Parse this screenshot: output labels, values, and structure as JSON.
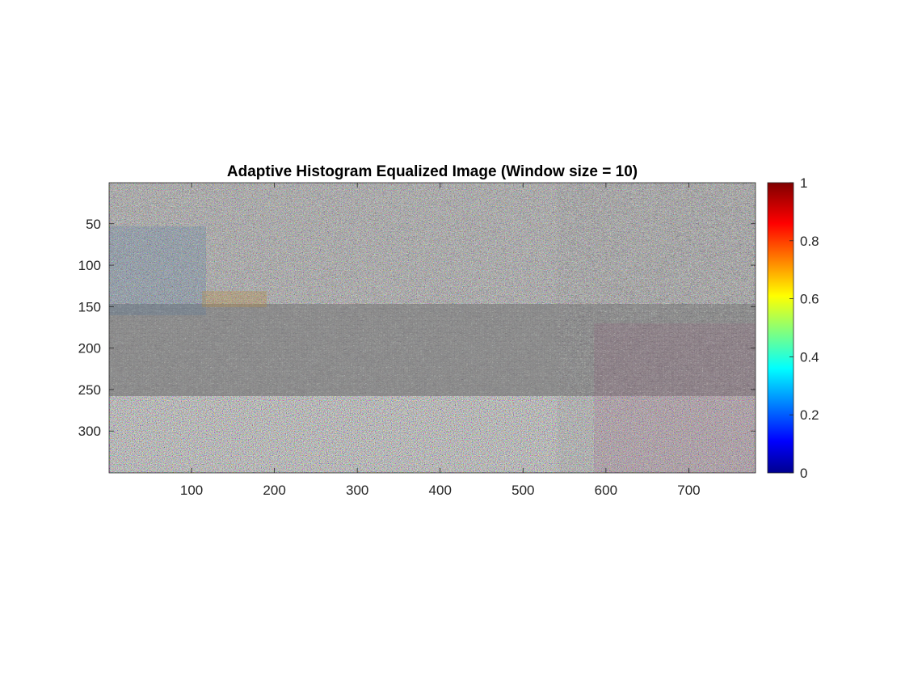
{
  "figure": {
    "title": "Adaptive Histogram Equalized Image (Window size = 10)",
    "image_width": 780,
    "image_height": 350,
    "xticks": [
      100,
      200,
      300,
      400,
      500,
      600,
      700
    ],
    "yticks": [
      50,
      100,
      150,
      200,
      250,
      300
    ],
    "yticks_shown": [
      "50",
      "100",
      "150",
      "200",
      "250",
      "300"
    ],
    "xtick_labels": [
      "100",
      "200",
      "300",
      "400",
      "500",
      "600",
      "700"
    ],
    "ytick_labels": [
      "50",
      "100",
      "150",
      "200",
      "250",
      "300"
    ]
  },
  "colorbar": {
    "colormap": "jet",
    "range": [
      0,
      1
    ],
    "ticks": [
      0,
      0.2,
      0.4,
      0.6,
      0.8,
      1
    ],
    "tick_labels": [
      "0",
      "0.2",
      "0.4",
      "0.6",
      "0.8",
      "1"
    ],
    "colors": [
      "#00008f",
      "#0000ff",
      "#00ffff",
      "#ffff00",
      "#ff0000",
      "#800000"
    ]
  }
}
